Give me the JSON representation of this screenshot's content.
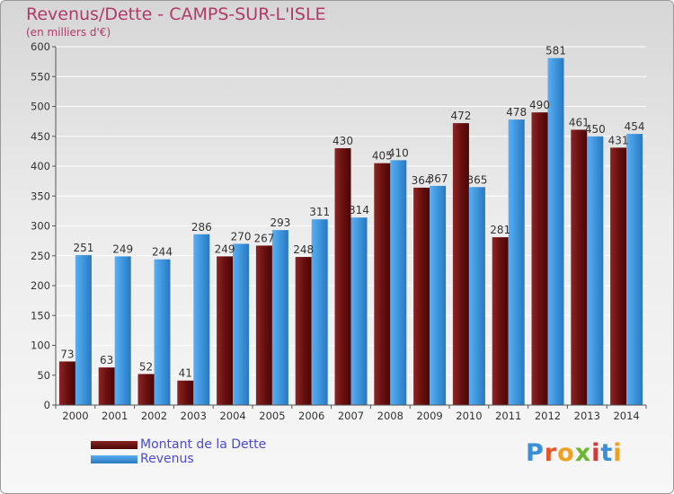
{
  "header": {
    "title": "Revenus/Dette - CAMPS-SUR-L'ISLE",
    "subtitle": "(en milliers d'€)"
  },
  "legend": {
    "items": [
      {
        "label": "Montant de la Dette",
        "color": "#6e1414"
      },
      {
        "label": "Revenus",
        "color": "#3a8fd6"
      }
    ]
  },
  "logo": {
    "text": "Proxiti"
  },
  "chart_data": {
    "type": "bar",
    "categories": [
      "2000",
      "2001",
      "2002",
      "2003",
      "2004",
      "2005",
      "2006",
      "2007",
      "2008",
      "2009",
      "2010",
      "2011",
      "2012",
      "2013",
      "2014"
    ],
    "series": [
      {
        "name": "Montant de la Dette",
        "values": [
          73,
          63,
          52,
          41,
          249,
          267,
          248,
          430,
          405,
          364,
          472,
          281,
          490,
          461,
          431
        ]
      },
      {
        "name": "Revenus",
        "values": [
          251,
          249,
          244,
          286,
          270,
          293,
          311,
          314,
          410,
          367,
          365,
          478,
          581,
          450,
          454
        ]
      }
    ],
    "title": "Revenus/Dette - CAMPS-SUR-L'ISLE",
    "subtitle": "(en milliers d'€)",
    "ylim": [
      0,
      600
    ],
    "yticks": [
      0,
      50,
      100,
      150,
      200,
      250,
      300,
      350,
      400,
      450,
      500,
      550,
      600
    ],
    "grid": true,
    "legend_position": "bottom-left"
  }
}
